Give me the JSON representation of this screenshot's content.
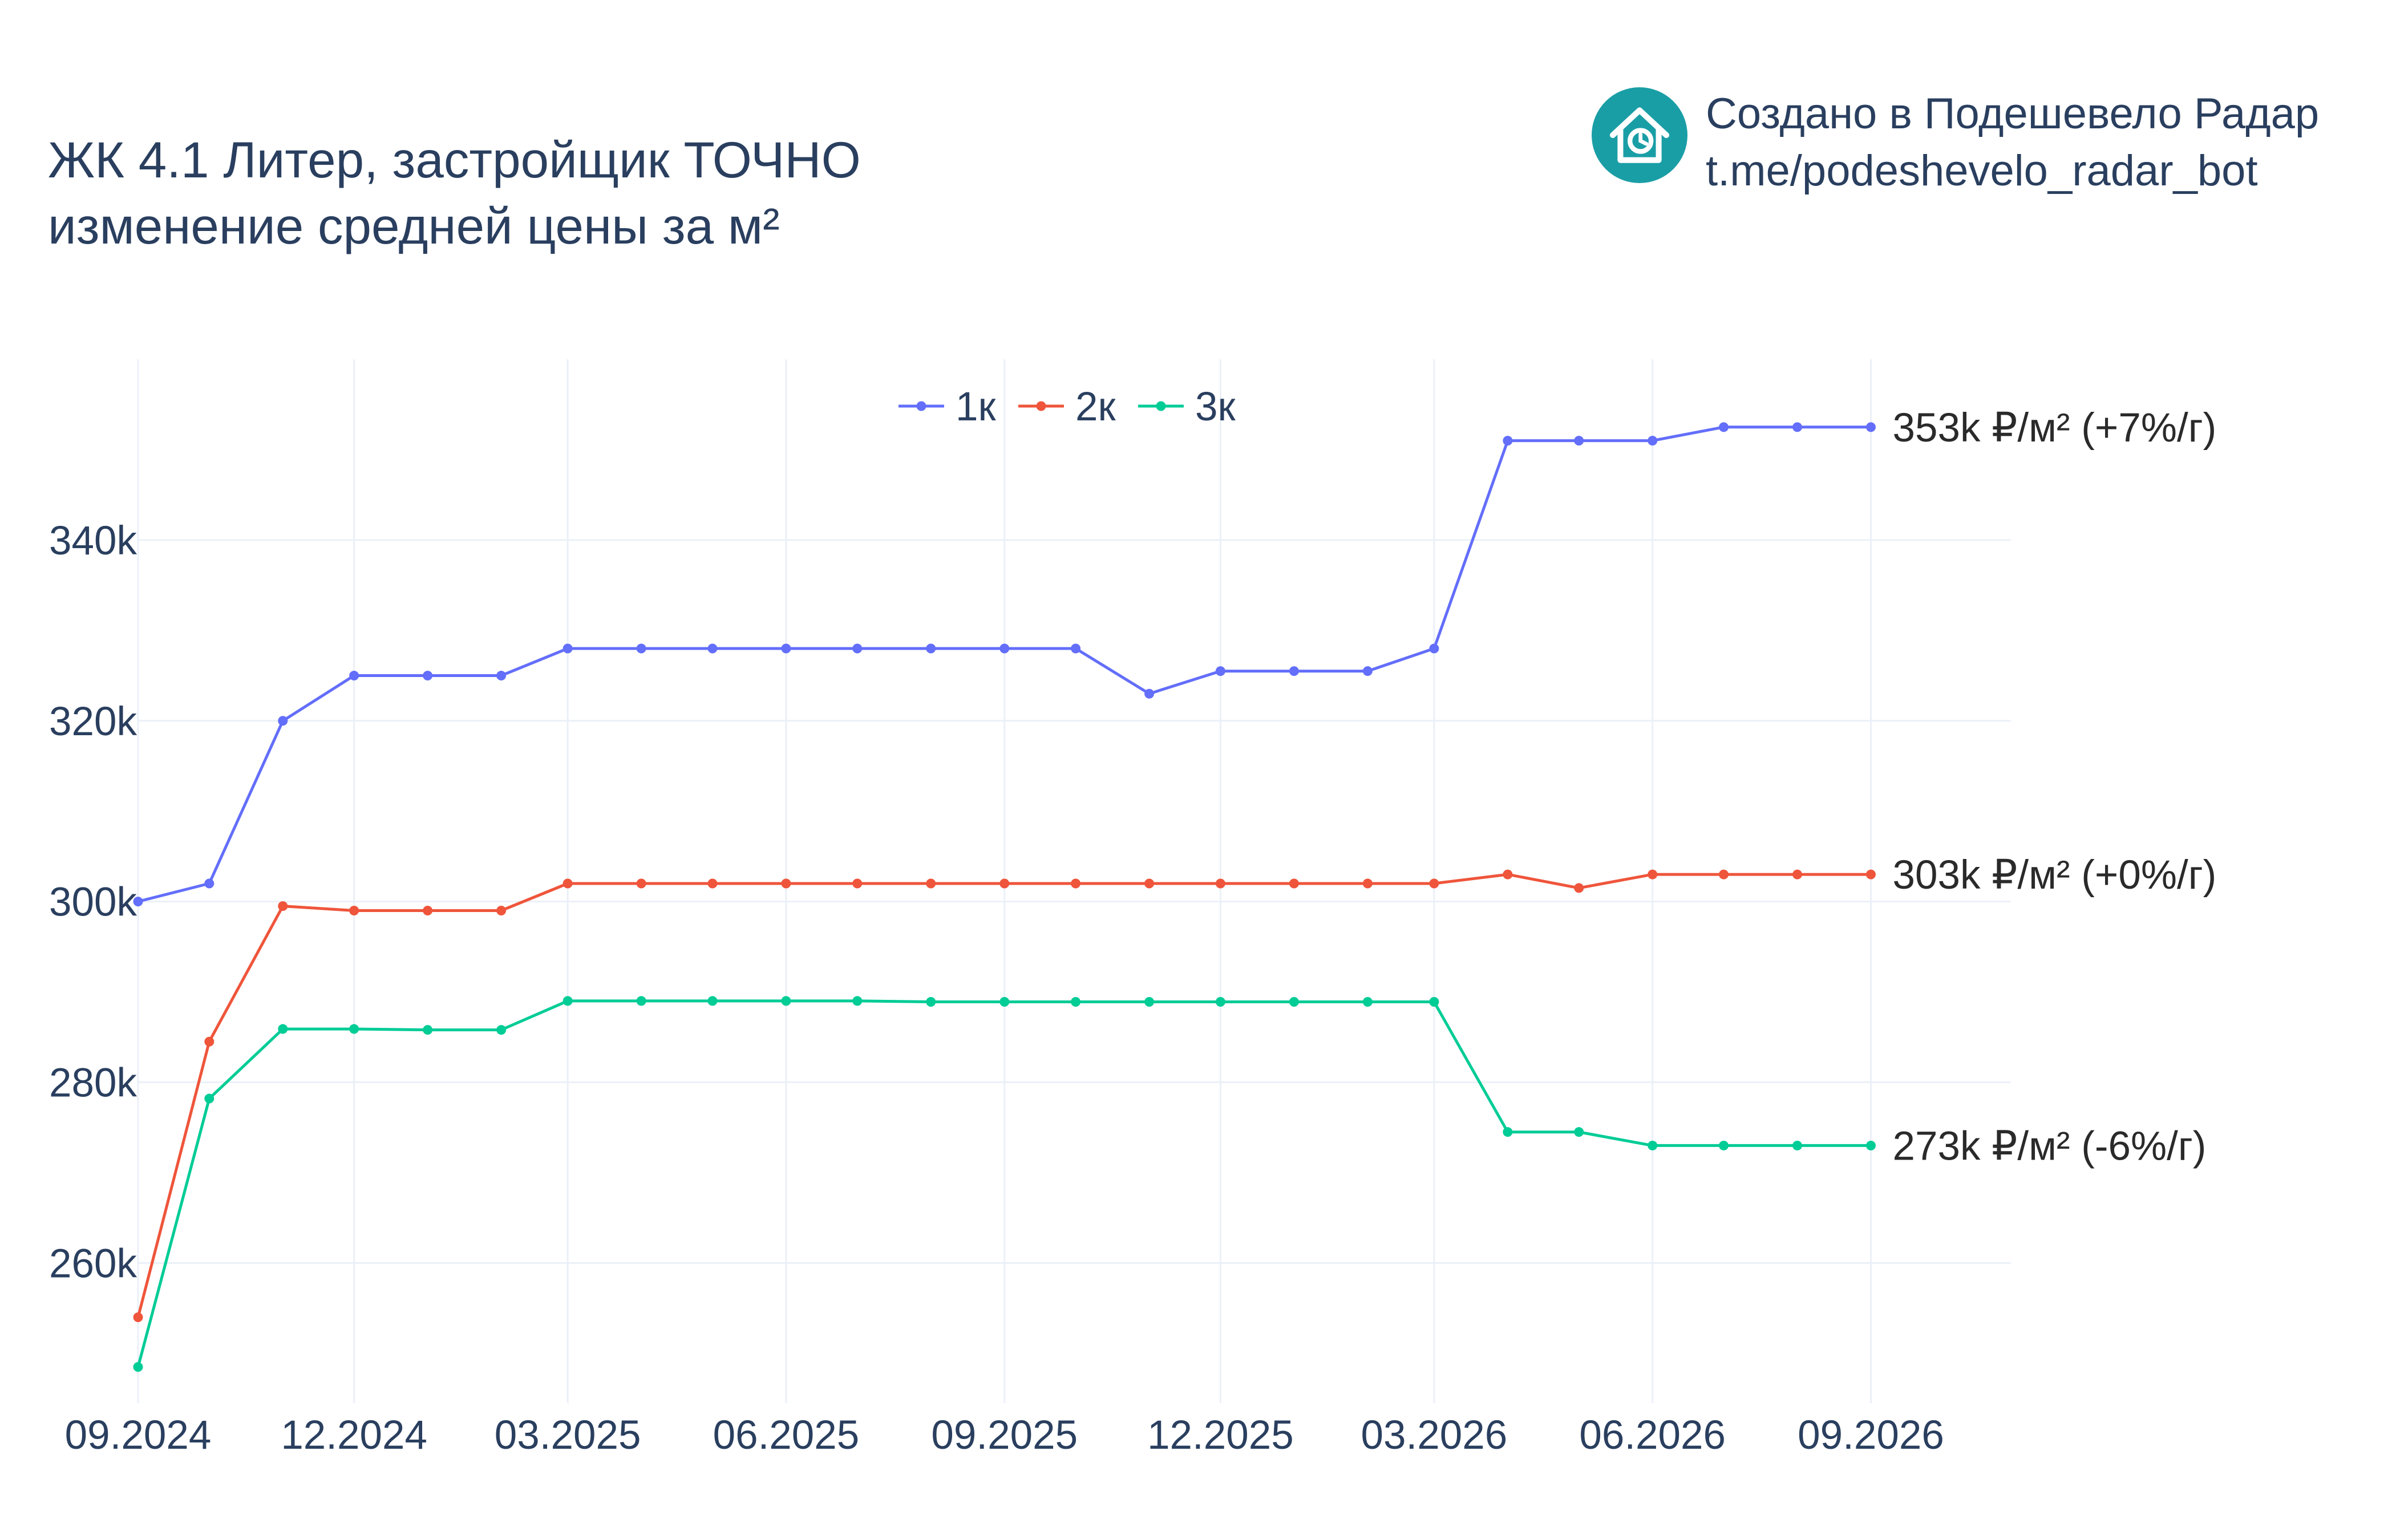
{
  "header": {
    "title_line1": "ЖК 4.1 Литер, застройщик ТОЧНО",
    "title_line2": "изменение средней цены за м²"
  },
  "brand": {
    "line1": "Создано в Подешевело Радар",
    "line2": "t.me/podeshevelo_radar_bot",
    "logo_icon": "house-clock-icon",
    "logo_color": "#1a9ea6"
  },
  "chart_data": {
    "type": "line",
    "x_axis": {
      "ticks": [
        "09.2024",
        "12.2024",
        "03.2025",
        "06.2025",
        "09.2025",
        "12.2025",
        "03.2026",
        "06.2026",
        "09.2026"
      ],
      "range": [
        "2024-09-01",
        "2026-10-30"
      ]
    },
    "y_axis": {
      "ticks": [
        260000,
        280000,
        300000,
        320000,
        340000
      ],
      "tick_labels": [
        "260k",
        "280k",
        "300k",
        "320k",
        "340k"
      ],
      "range": [
        244500,
        360000
      ]
    },
    "grid": true,
    "legend": {
      "position": "top-center",
      "orientation": "horizontal"
    },
    "series": [
      {
        "name": "1к",
        "color": "#636efa",
        "end_label": "353k ₽/м² (+7%/г)",
        "points": [
          [
            "2024-09-01",
            300000
          ],
          [
            "2024-10-01",
            302000
          ],
          [
            "2024-11-01",
            320000
          ],
          [
            "2024-12-01",
            325000
          ],
          [
            "2025-01-01",
            325000
          ],
          [
            "2025-02-01",
            325000
          ],
          [
            "2025-03-01",
            328000
          ],
          [
            "2025-04-01",
            328000
          ],
          [
            "2025-05-01",
            328000
          ],
          [
            "2025-06-01",
            328000
          ],
          [
            "2025-07-01",
            328000
          ],
          [
            "2025-08-01",
            328000
          ],
          [
            "2025-09-01",
            328000
          ],
          [
            "2025-10-01",
            328000
          ],
          [
            "2025-11-01",
            323000
          ],
          [
            "2025-12-01",
            325500
          ],
          [
            "2026-01-01",
            325500
          ],
          [
            "2026-02-01",
            325500
          ],
          [
            "2026-03-01",
            328000
          ],
          [
            "2026-04-01",
            351000
          ],
          [
            "2026-05-01",
            351000
          ],
          [
            "2026-06-01",
            351000
          ],
          [
            "2026-07-01",
            352500
          ],
          [
            "2026-08-01",
            352500
          ],
          [
            "2026-09-01",
            352500
          ]
        ]
      },
      {
        "name": "2к",
        "color": "#ef553b",
        "end_label": "303k ₽/м² (+0%/г)",
        "points": [
          [
            "2024-09-01",
            254000
          ],
          [
            "2024-10-01",
            284500
          ],
          [
            "2024-11-01",
            299500
          ],
          [
            "2024-12-01",
            299000
          ],
          [
            "2025-01-01",
            299000
          ],
          [
            "2025-02-01",
            299000
          ],
          [
            "2025-03-01",
            302000
          ],
          [
            "2025-04-01",
            302000
          ],
          [
            "2025-05-01",
            302000
          ],
          [
            "2025-06-01",
            302000
          ],
          [
            "2025-07-01",
            302000
          ],
          [
            "2025-08-01",
            302000
          ],
          [
            "2025-09-01",
            302000
          ],
          [
            "2025-10-01",
            302000
          ],
          [
            "2025-11-01",
            302000
          ],
          [
            "2025-12-01",
            302000
          ],
          [
            "2026-01-01",
            302000
          ],
          [
            "2026-02-01",
            302000
          ],
          [
            "2026-03-01",
            302000
          ],
          [
            "2026-04-01",
            303000
          ],
          [
            "2026-05-01",
            301500
          ],
          [
            "2026-06-01",
            303000
          ],
          [
            "2026-07-01",
            303000
          ],
          [
            "2026-08-01",
            303000
          ],
          [
            "2026-09-01",
            303000
          ]
        ]
      },
      {
        "name": "3к",
        "color": "#00cc96",
        "end_label": "273k ₽/м² (-6%/г)",
        "points": [
          [
            "2024-09-01",
            248500
          ],
          [
            "2024-10-01",
            278200
          ],
          [
            "2024-11-01",
            285900
          ],
          [
            "2024-12-01",
            285900
          ],
          [
            "2025-01-01",
            285800
          ],
          [
            "2025-02-01",
            285800
          ],
          [
            "2025-03-01",
            289000
          ],
          [
            "2025-04-01",
            289000
          ],
          [
            "2025-05-01",
            289000
          ],
          [
            "2025-06-01",
            289000
          ],
          [
            "2025-07-01",
            289000
          ],
          [
            "2025-08-01",
            288900
          ],
          [
            "2025-09-01",
            288900
          ],
          [
            "2025-10-01",
            288900
          ],
          [
            "2025-11-01",
            288900
          ],
          [
            "2025-12-01",
            288900
          ],
          [
            "2026-01-01",
            288900
          ],
          [
            "2026-02-01",
            288900
          ],
          [
            "2026-03-01",
            288900
          ],
          [
            "2026-04-01",
            274500
          ],
          [
            "2026-05-01",
            274500
          ],
          [
            "2026-06-01",
            273000
          ],
          [
            "2026-07-01",
            273000
          ],
          [
            "2026-08-01",
            273000
          ],
          [
            "2026-09-01",
            273000
          ]
        ]
      }
    ]
  }
}
